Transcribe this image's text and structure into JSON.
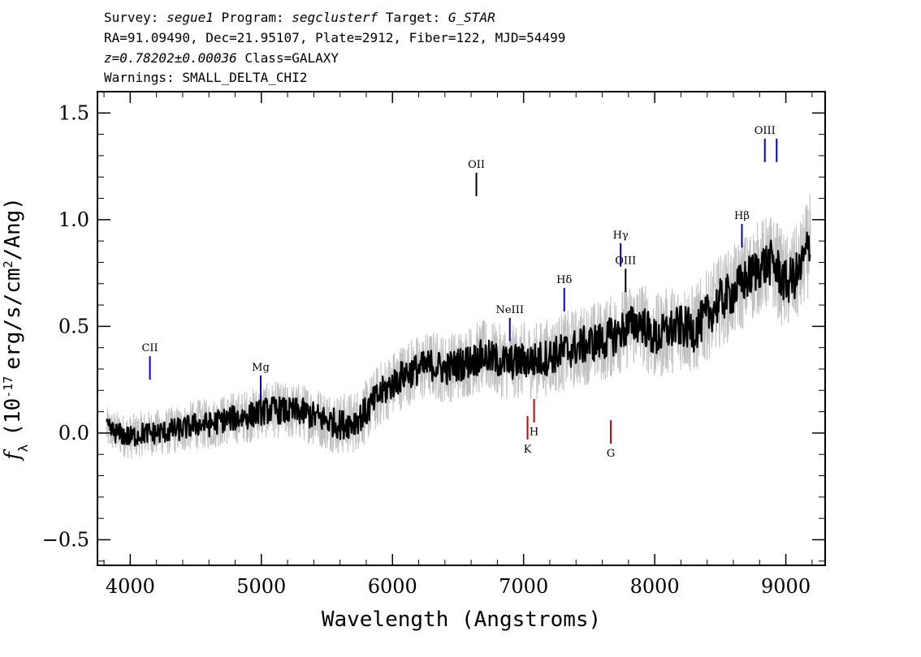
{
  "header": {
    "line1": {
      "survey_label": "Survey:",
      "survey": "segue1",
      "program_label": "Program:",
      "program": "segclusterf",
      "target_label": "Target:",
      "target": "G_STAR"
    },
    "line2": "RA=91.09490, Dec=21.95107, Plate=2912, Fiber=122, MJD=54499",
    "line3": {
      "z": "z=0.78202±0.00036",
      "class": "Class=GALAXY"
    },
    "line4": "Warnings: SMALL_DELTA_CHI2"
  },
  "chart_data": {
    "type": "line",
    "title": "",
    "xlabel": "Wavelength (Angstroms)",
    "ylabel_prefix": "f",
    "ylabel_sub": "λ",
    "ylabel_units": "(10",
    "ylabel_exp": "-17",
    "ylabel_tail": "erg/s/cm",
    "ylabel_exp2": "2",
    "ylabel_end": "/Ang)",
    "xlim": [
      3750,
      9300
    ],
    "ylim": [
      -0.62,
      1.6
    ],
    "x_ticks": [
      4000,
      5000,
      6000,
      7000,
      8000,
      9000
    ],
    "x_tick_labels": [
      "4000",
      "5000",
      "6000",
      "7000",
      "8000",
      "9000"
    ],
    "y_ticks": [
      -0.5,
      0.0,
      0.5,
      1.0,
      1.5
    ],
    "y_tick_labels": [
      "−0.5",
      "0.0",
      "0.5",
      "1.0",
      "1.5"
    ],
    "grid": false,
    "series": [
      {
        "role": "smoothed",
        "color": "#000000",
        "x": [
          3820,
          3900,
          4000,
          4100,
          4200,
          4300,
          4400,
          4500,
          4600,
          4700,
          4800,
          4900,
          5000,
          5100,
          5200,
          5300,
          5400,
          5500,
          5600,
          5700,
          5800,
          5900,
          6000,
          6100,
          6200,
          6300,
          6400,
          6500,
          6600,
          6700,
          6800,
          6900,
          7000,
          7100,
          7200,
          7300,
          7400,
          7500,
          7600,
          7700,
          7800,
          7900,
          8000,
          8100,
          8200,
          8300,
          8400,
          8500,
          8600,
          8700,
          8800,
          8900,
          9000,
          9100,
          9190
        ],
        "y": [
          0.02,
          0.0,
          -0.02,
          0.0,
          0.0,
          0.01,
          0.02,
          0.04,
          0.04,
          0.06,
          0.07,
          0.08,
          0.1,
          0.11,
          0.1,
          0.1,
          0.08,
          0.06,
          0.04,
          0.05,
          0.1,
          0.18,
          0.23,
          0.28,
          0.3,
          0.32,
          0.3,
          0.32,
          0.34,
          0.36,
          0.34,
          0.33,
          0.34,
          0.34,
          0.36,
          0.38,
          0.4,
          0.42,
          0.43,
          0.46,
          0.5,
          0.52,
          0.44,
          0.48,
          0.5,
          0.48,
          0.55,
          0.62,
          0.66,
          0.72,
          0.78,
          0.8,
          0.7,
          0.75,
          0.9
        ]
      },
      {
        "role": "raw",
        "color": "#bfbfbf",
        "band_halfwidth": 0.12
      }
    ],
    "line_markers": [
      {
        "label": "CII",
        "x": 4150,
        "y_top": 0.36,
        "y_bottom": 0.25,
        "color": "#0000cc",
        "side": "above"
      },
      {
        "label": "Mg",
        "x": 4995,
        "y_top": 0.27,
        "y_bottom": 0.16,
        "color": "#0000cc",
        "side": "above"
      },
      {
        "label": "OII",
        "x": 6640,
        "y_top": 1.22,
        "y_bottom": 1.11,
        "color": "#000000",
        "side": "above"
      },
      {
        "label": "NeIII",
        "x": 6895,
        "y_top": 0.54,
        "y_bottom": 0.43,
        "color": "#0000cc",
        "side": "above"
      },
      {
        "label": "Hδ",
        "x": 7310,
        "y_top": 0.68,
        "y_bottom": 0.57,
        "color": "#0000cc",
        "side": "above"
      },
      {
        "label": "Hγ",
        "x": 7740,
        "y_top": 0.89,
        "y_bottom": 0.78,
        "color": "#0000cc",
        "side": "above"
      },
      {
        "label": "OIII",
        "x": 7778,
        "y_top": 0.77,
        "y_bottom": 0.66,
        "color": "#000000",
        "side": "above"
      },
      {
        "label": "Hβ",
        "x": 8665,
        "y_top": 0.98,
        "y_bottom": 0.87,
        "color": "#0000cc",
        "side": "above"
      },
      {
        "label": "OIII",
        "x": 8840,
        "y_top": 1.38,
        "y_bottom": 1.27,
        "color": "#0000cc",
        "side": "above"
      },
      {
        "label": "",
        "x": 8930,
        "y_top": 1.38,
        "y_bottom": 1.27,
        "color": "#0000cc",
        "side": "above"
      },
      {
        "label": "K",
        "x": 7030,
        "y_top": 0.08,
        "y_bottom": -0.03,
        "color": "#cc0000",
        "side": "below"
      },
      {
        "label": "H",
        "x": 7080,
        "y_top": 0.16,
        "y_bottom": 0.05,
        "color": "#cc0000",
        "side": "below"
      },
      {
        "label": "G",
        "x": 7665,
        "y_top": 0.06,
        "y_bottom": -0.05,
        "color": "#cc0000",
        "side": "below"
      }
    ],
    "colors": {
      "smoothed": "#000000",
      "raw": "#bfbfbf",
      "emission_marker": "#0000cc",
      "absorption_marker": "#cc0000"
    }
  }
}
